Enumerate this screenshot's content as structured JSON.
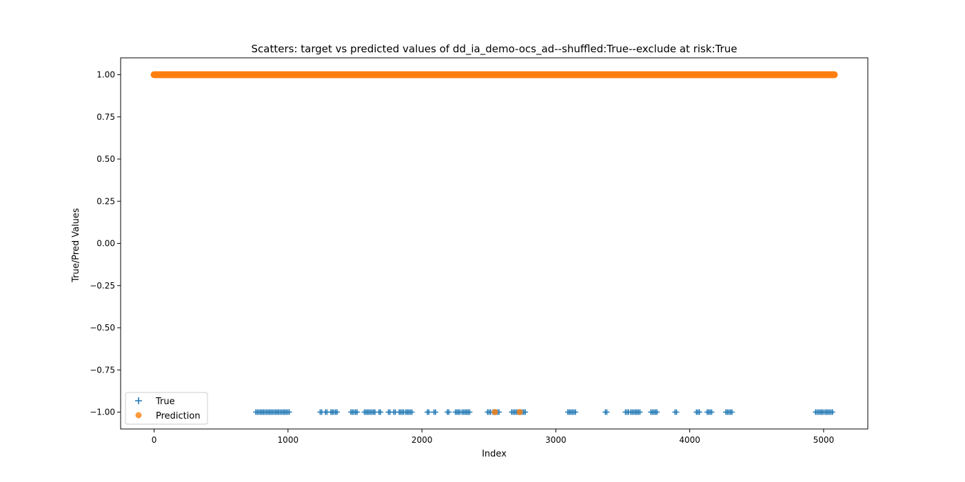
{
  "chart_data": {
    "type": "scatter",
    "title": "Scatters: target vs predicted values of dd_ia_demo-ocs_ad--shuffled:True--exclude at risk:True",
    "xlabel": "Index",
    "ylabel": "True/Pred Values",
    "xlim": [
      -250,
      5330
    ],
    "ylim": [
      -1.1,
      1.1
    ],
    "x_ticks": [
      0,
      1000,
      2000,
      3000,
      4000,
      5000
    ],
    "x_tick_labels": [
      "0",
      "1000",
      "2000",
      "3000",
      "4000",
      "5000"
    ],
    "y_ticks": [
      1.0,
      0.75,
      0.5,
      0.25,
      0.0,
      -0.25,
      -0.5,
      -0.75,
      -1.0
    ],
    "y_tick_labels": [
      "1.00",
      "0.75",
      "0.50",
      "0.25",
      "0.00",
      "−0.25",
      "−0.50",
      "−0.75",
      "−1.00"
    ],
    "grid": false,
    "legend_position": "lower-left",
    "series": [
      {
        "name": "True",
        "marker": "plus",
        "color": "#1f77b4",
        "y": -1.0,
        "x_ranges": [
          [
            760,
            1020
          ],
          [
            1240,
            1260
          ],
          [
            1280,
            1300
          ],
          [
            1320,
            1345
          ],
          [
            1355,
            1370
          ],
          [
            1470,
            1495
          ],
          [
            1505,
            1525
          ],
          [
            1570,
            1650
          ],
          [
            1680,
            1700
          ],
          [
            1750,
            1770
          ],
          [
            1790,
            1810
          ],
          [
            1830,
            1870
          ],
          [
            1880,
            1930
          ],
          [
            2040,
            2060
          ],
          [
            2090,
            2110
          ],
          [
            2190,
            2210
          ],
          [
            2250,
            2290
          ],
          [
            2300,
            2360
          ],
          [
            2490,
            2520
          ],
          [
            2530,
            2580
          ],
          [
            2670,
            2780
          ],
          [
            3090,
            3150
          ],
          [
            3370,
            3390
          ],
          [
            3520,
            3550
          ],
          [
            3560,
            3630
          ],
          [
            3710,
            3760
          ],
          [
            3890,
            3910
          ],
          [
            4050,
            4080
          ],
          [
            4130,
            4170
          ],
          [
            4270,
            4320
          ],
          [
            4940,
            5000
          ],
          [
            5010,
            5070
          ]
        ]
      },
      {
        "name": "Prediction",
        "marker": "circle",
        "color": "#ff7f0e",
        "opacity": 0.8,
        "y_main": 1.0,
        "x_range_main": [
          0,
          5080
        ],
        "points": [
          {
            "x": 2545,
            "y": -1.0
          },
          {
            "x": 2730,
            "y": -1.0
          }
        ]
      }
    ]
  }
}
